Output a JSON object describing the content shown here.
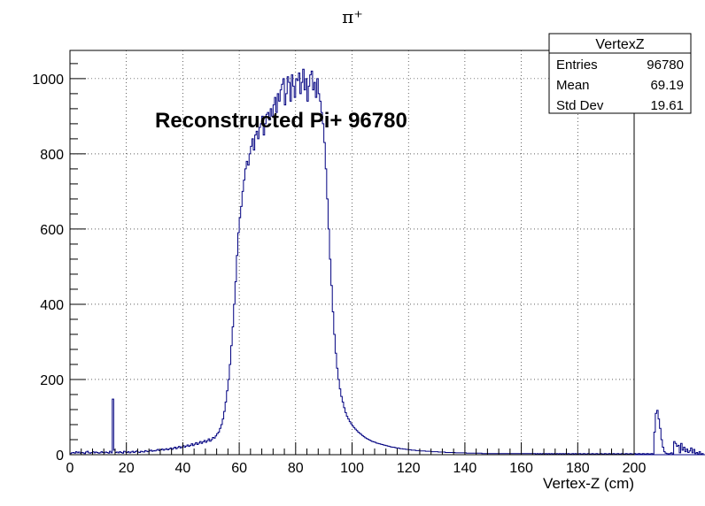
{
  "chart_data": {
    "type": "histogram",
    "title": "π⁺",
    "xlabel": "Vertex-Z (cm)",
    "ylabel": "",
    "xlim": [
      0,
      200
    ],
    "ylim": [
      0,
      1075
    ],
    "xticks": [
      "0",
      "20",
      "40",
      "60",
      "80",
      "100",
      "120",
      "140",
      "160",
      "180",
      "200"
    ],
    "yticks": [
      "0",
      "200",
      "400",
      "600",
      "800",
      "1000"
    ],
    "grid": true,
    "annotation": "Reconstructed Pi+ 96780",
    "line_color": "#000080",
    "stats": {
      "title": "VertexZ",
      "rows": [
        {
          "label": "Entries",
          "value": "96780"
        },
        {
          "label": "Mean",
          "value": "69.19"
        },
        {
          "label": "Std Dev",
          "value": "19.61"
        }
      ]
    },
    "series": [
      {
        "bin_width": 0.5,
        "x_start": 0,
        "values": [
          3,
          5,
          6,
          4,
          8,
          5,
          7,
          4,
          6,
          5,
          3,
          7,
          9,
          5,
          4,
          6,
          8,
          5,
          7,
          6,
          4,
          5,
          8,
          6,
          5,
          7,
          6,
          4,
          9,
          5,
          148,
          12,
          6,
          7,
          5,
          8,
          6,
          4,
          9,
          7,
          6,
          8,
          5,
          7,
          9,
          6,
          8,
          10,
          7,
          6,
          9,
          8,
          7,
          11,
          9,
          8,
          10,
          12,
          9,
          11,
          10,
          12,
          14,
          11,
          13,
          15,
          12,
          14,
          16,
          13,
          15,
          18,
          14,
          17,
          20,
          16,
          19,
          22,
          18,
          21,
          24,
          20,
          23,
          26,
          22,
          25,
          29,
          24,
          28,
          32,
          27,
          31,
          35,
          30,
          34,
          38,
          33,
          37,
          42,
          36,
          40,
          46,
          44,
          50,
          56,
          60,
          70,
          80,
          95,
          115,
          140,
          170,
          200,
          240,
          290,
          340,
          400,
          460,
          530,
          590,
          630,
          660,
          700,
          730,
          760,
          780,
          770,
          800,
          820,
          840,
          810,
          850,
          860,
          840,
          870,
          880,
          900,
          850,
          880,
          905,
          910,
          890,
          920,
          900,
          930,
          950,
          910,
          960,
          940,
          970,
          985,
          1000,
          930,
          960,
          1005,
          990,
          940,
          1010,
          980,
          950,
          1000,
          995,
          1015,
          960,
          990,
          1025,
          970,
          1000,
          940,
          980,
          1010,
          1020,
          970,
          990,
          950,
          1000,
          960,
          940,
          910,
          880,
          830,
          760,
          680,
          600,
          520,
          450,
          380,
          320,
          270,
          230,
          200,
          175,
          155,
          140,
          125,
          112,
          102,
          95,
          88,
          82,
          77,
          72,
          68,
          64,
          60,
          57,
          54,
          51,
          48,
          45,
          43,
          41,
          39,
          37,
          35,
          34,
          33,
          31,
          30,
          29,
          28,
          27,
          26,
          25,
          24,
          23,
          22,
          21,
          20,
          20,
          19,
          18,
          18,
          17,
          16,
          16,
          15,
          15,
          14,
          14,
          13,
          13,
          12,
          12,
          12,
          11,
          11,
          11,
          10,
          10,
          10,
          10,
          9,
          9,
          9,
          9,
          8,
          8,
          8,
          8,
          8,
          7,
          7,
          7,
          7,
          7,
          6,
          6,
          6,
          6,
          6,
          6,
          6,
          5,
          5,
          5,
          5,
          5,
          5,
          5,
          5,
          4,
          4,
          4,
          4,
          4,
          4,
          4,
          4,
          4,
          4,
          4,
          3,
          3,
          3,
          3,
          3,
          3,
          3,
          3,
          3,
          3,
          3,
          3,
          3,
          3,
          3,
          3,
          3,
          3,
          3,
          3,
          3,
          3,
          3,
          3,
          3,
          3,
          3,
          3,
          3,
          3,
          3,
          3,
          3,
          3,
          3,
          3,
          3,
          3,
          2,
          3,
          2,
          3,
          2,
          3,
          2,
          3,
          2,
          3,
          2,
          3,
          2,
          3,
          2,
          3,
          2,
          3,
          2,
          3,
          2,
          3,
          2,
          3,
          2,
          2,
          3,
          2,
          3,
          2,
          2,
          3,
          2,
          2,
          3,
          2,
          2,
          3,
          2,
          2,
          3,
          2,
          2,
          3,
          2,
          2,
          3,
          2,
          2,
          3,
          2,
          2,
          3,
          2,
          2,
          3,
          2,
          2,
          3,
          2,
          2,
          3,
          2,
          2,
          3,
          2,
          2,
          3,
          2,
          2,
          3,
          2,
          2,
          3,
          2,
          2,
          3,
          2,
          2,
          3,
          2,
          2,
          3,
          2,
          60,
          110,
          118,
          95,
          70,
          40,
          20,
          8,
          4,
          3,
          2,
          3,
          5,
          2,
          35,
          30,
          22,
          25,
          5,
          30,
          12,
          20,
          8,
          15,
          6,
          10,
          18,
          5,
          14,
          3,
          6,
          2,
          8,
          2,
          3,
          0,
          0,
          0,
          0,
          0,
          0,
          0,
          0,
          0,
          0,
          0,
          0,
          0,
          0,
          0,
          0,
          0,
          0,
          0,
          0,
          0,
          0,
          0,
          0,
          0,
          0,
          0,
          0,
          0,
          0,
          0,
          0,
          0,
          0,
          0,
          0,
          0,
          0,
          0,
          0,
          0,
          0,
          0,
          0,
          0,
          0,
          0,
          0,
          0,
          0,
          0
        ]
      }
    ]
  }
}
